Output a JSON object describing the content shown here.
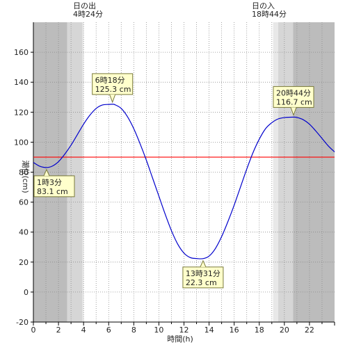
{
  "chart_data": {
    "type": "line",
    "xlabel": "時間(h)",
    "ylabel": "潮位(cm)",
    "xlim": [
      0,
      24
    ],
    "ylim": [
      -20,
      180
    ],
    "x_ticks": [
      "0",
      "2",
      "4",
      "6",
      "8",
      "10",
      "12",
      "14",
      "16",
      "18",
      "20",
      "22"
    ],
    "y_ticks": [
      "-20",
      "0",
      "20",
      "40",
      "60",
      "80",
      "100",
      "120",
      "140",
      "160"
    ],
    "reference_line": {
      "y": 90,
      "color": "#ff0000"
    },
    "series": [
      {
        "color": "#0000cc",
        "x": [
          0,
          0.5,
          1.05,
          1.5,
          2,
          2.5,
          3,
          3.5,
          4,
          4.5,
          5,
          5.5,
          6,
          6.3,
          6.5,
          7,
          7.5,
          8,
          8.5,
          9,
          9.5,
          10,
          10.5,
          11,
          11.5,
          12,
          12.5,
          13,
          13.52,
          14,
          14.5,
          15,
          15.5,
          16,
          16.5,
          17,
          17.5,
          18,
          18.5,
          19,
          19.5,
          20,
          20.73,
          21,
          21.5,
          22,
          22.5,
          23,
          23.5,
          24
        ],
        "values": [
          86.5,
          84,
          83.1,
          84,
          87,
          92,
          98,
          105,
          112,
          118,
          122.5,
          124.8,
          125.2,
          125.3,
          125,
          122.5,
          117,
          109,
          99,
          88,
          76,
          64,
          52,
          41,
          32,
          26,
          23,
          22.4,
          22.3,
          24,
          29,
          37,
          47,
          58,
          70,
          82,
          93,
          102,
          109,
          113,
          115.5,
          116.4,
          116.7,
          116.5,
          115,
          112,
          107.5,
          102.5,
          97.5,
          93.5
        ]
      }
    ],
    "annotations": [
      {
        "time": "1時3分",
        "value": "83.1 cm",
        "x": 1.05,
        "y": 83.1,
        "pos": "below"
      },
      {
        "time": "6時18分",
        "value": "125.3 cm",
        "x": 6.3,
        "y": 125.3,
        "pos": "above"
      },
      {
        "time": "13時31分",
        "value": "22.3 cm",
        "x": 13.52,
        "y": 22.3,
        "pos": "below"
      },
      {
        "time": "20時44分",
        "value": "116.7 cm",
        "x": 20.73,
        "y": 116.7,
        "pos": "above"
      }
    ],
    "sunrise": {
      "label": "日の出",
      "time": "4時24分"
    },
    "sunset": {
      "label": "日の入",
      "time": "18時44分"
    },
    "bands": [
      {
        "x0": 0,
        "x1": 2.7,
        "color": "#bcbcbc"
      },
      {
        "x0": 2.7,
        "x1": 3.9,
        "color": "#d6d6d6"
      },
      {
        "x0": 3.9,
        "x1": 4.0,
        "color": "#e8e8e8"
      },
      {
        "x0": 19.1,
        "x1": 19.5,
        "color": "#e8e8e8"
      },
      {
        "x0": 19.5,
        "x1": 20.7,
        "color": "#d6d6d6"
      },
      {
        "x0": 20.7,
        "x1": 24,
        "color": "#bcbcbc"
      }
    ],
    "grid": true
  }
}
